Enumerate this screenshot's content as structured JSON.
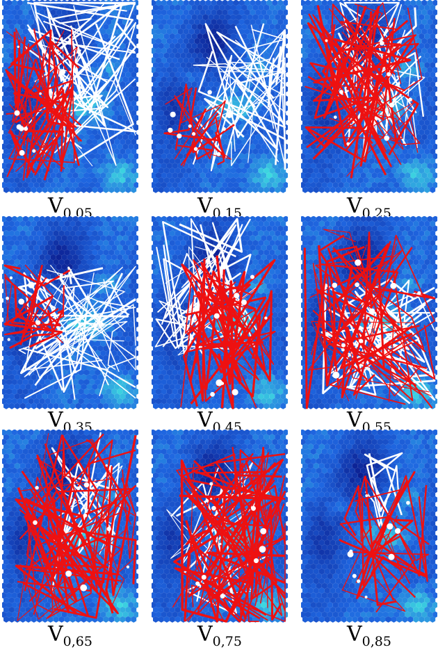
{
  "figure": {
    "panels": [
      {
        "label_main": "V",
        "label_sub": "0,05"
      },
      {
        "label_main": "V",
        "label_sub": "0,15"
      },
      {
        "label_main": "V",
        "label_sub": "0,25"
      },
      {
        "label_main": "V",
        "label_sub": "0,35"
      },
      {
        "label_main": "V",
        "label_sub": "0,45"
      },
      {
        "label_main": "V",
        "label_sub": "0,55"
      },
      {
        "label_main": "V",
        "label_sub": "0,65"
      },
      {
        "label_main": "V",
        "label_sub": "0,75"
      },
      {
        "label_main": "V",
        "label_sub": "0,85"
      }
    ],
    "colors": {
      "map_low": "#0a1a8c",
      "map_mid": "#1f66e0",
      "map_high": "#3fe0e0",
      "hot": "#f2d21a",
      "hottest": "#c81e0e",
      "path_red": "#ee1111",
      "path_white": "#ffffff"
    }
  }
}
